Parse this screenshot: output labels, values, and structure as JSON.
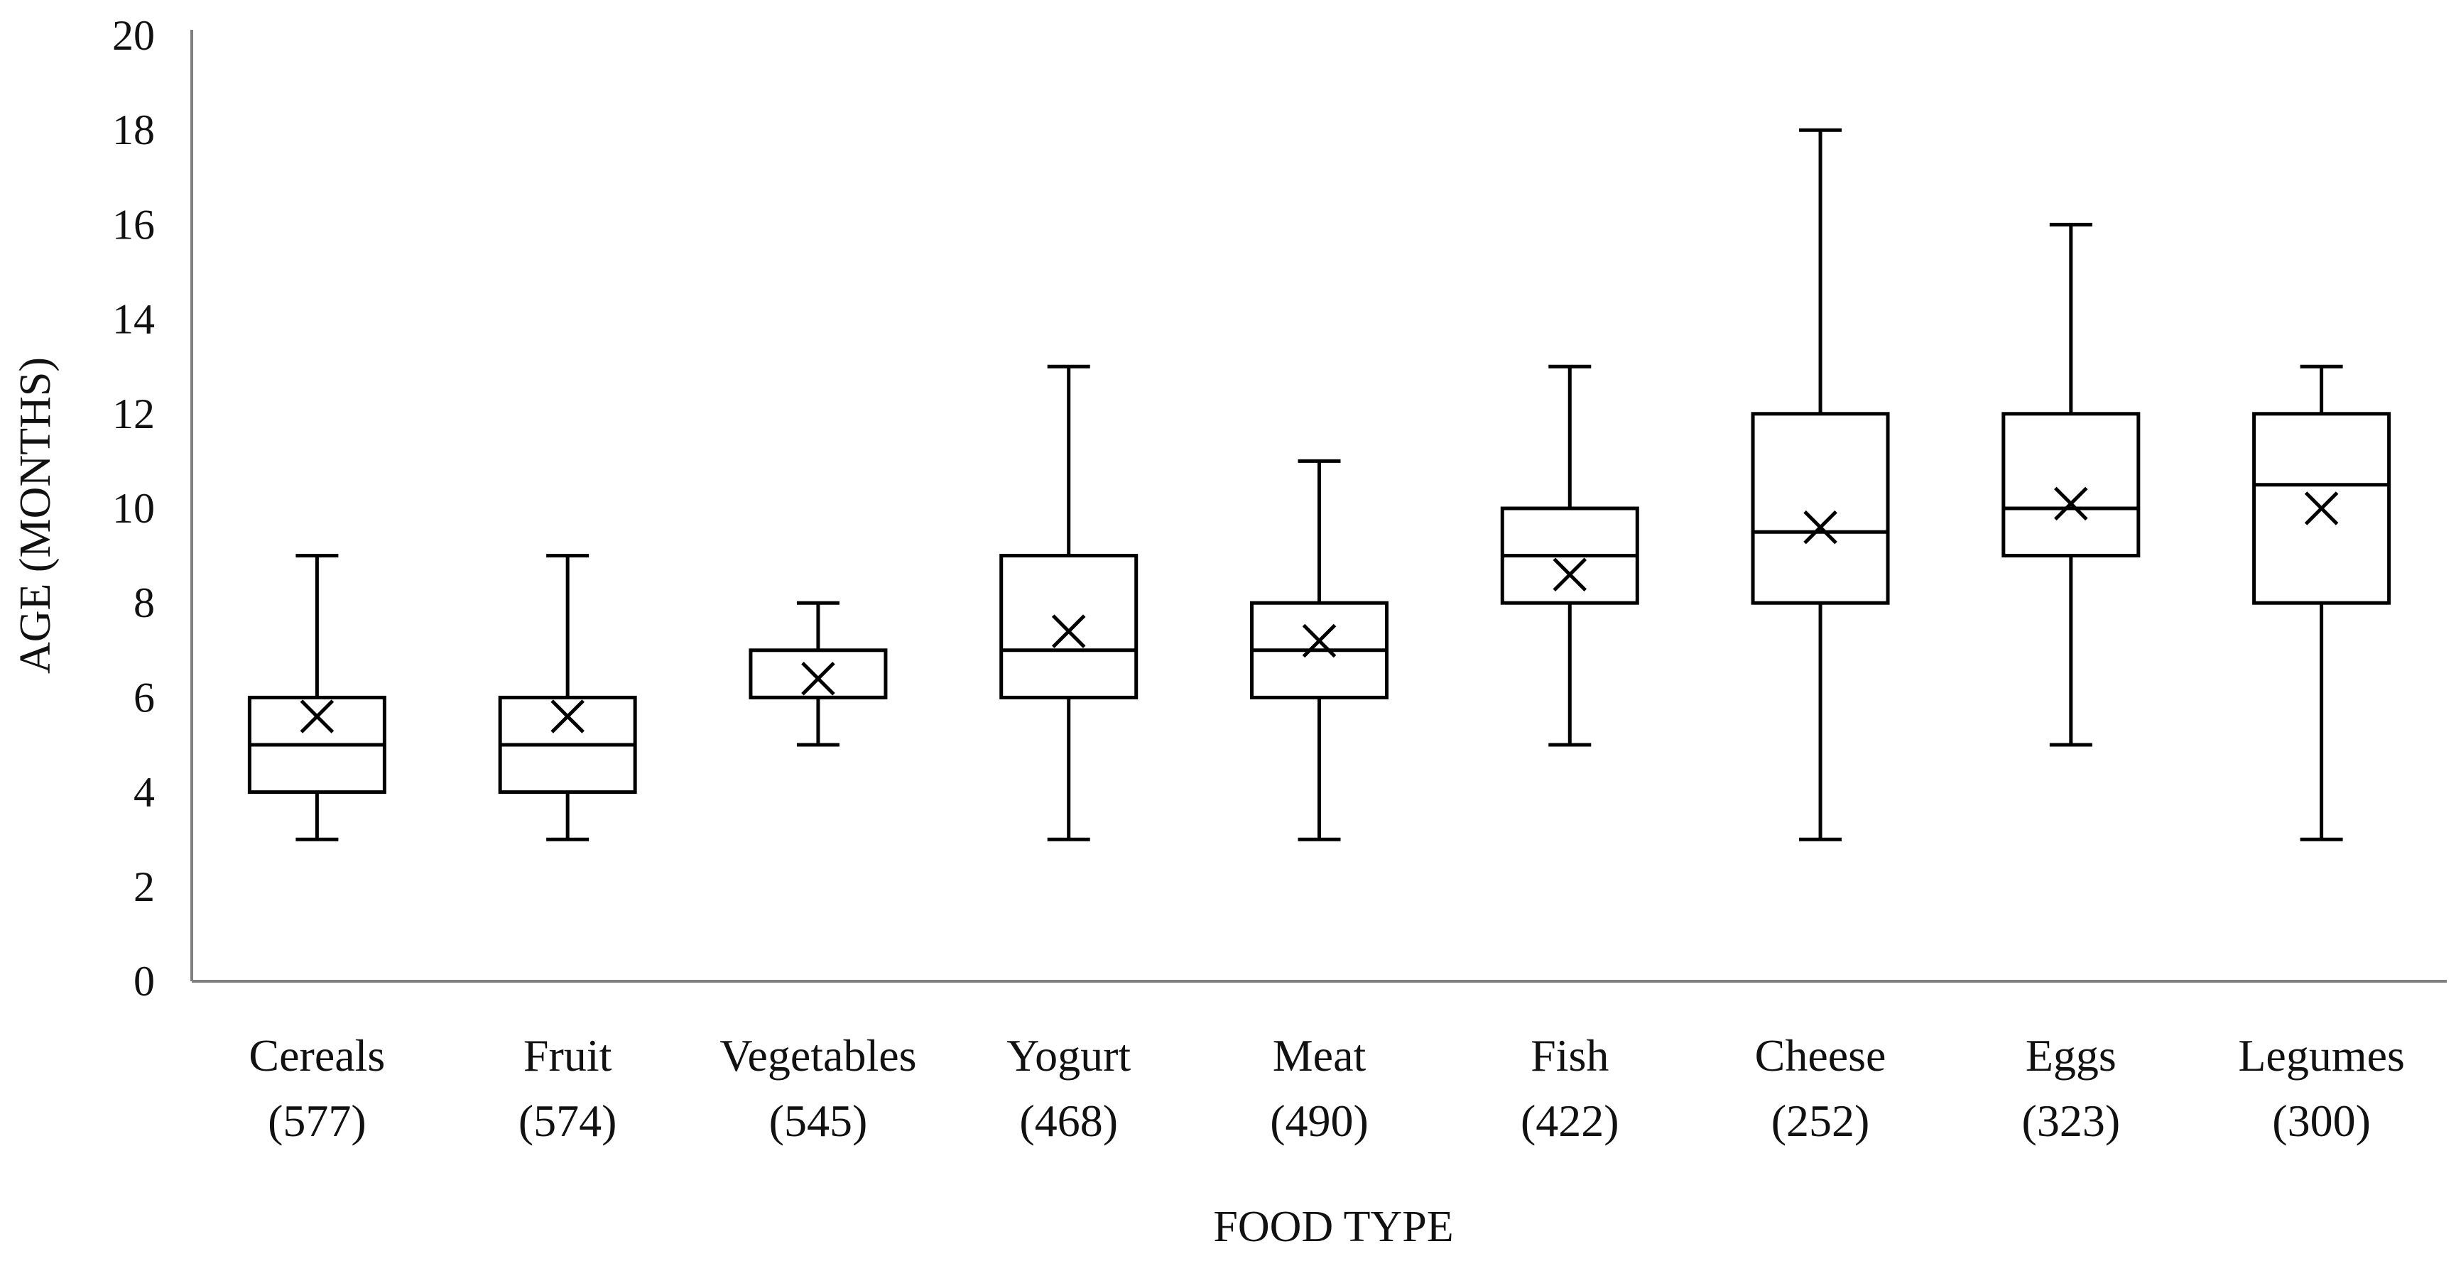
{
  "chart_data": {
    "type": "boxplot",
    "title": "",
    "xlabel": "FOOD TYPE",
    "ylabel": "AGE (MONTHS)",
    "ylim": [
      0,
      20
    ],
    "yticks": [
      "0",
      "2",
      "4",
      "6",
      "8",
      "10",
      "12",
      "14",
      "16",
      "18",
      "20"
    ],
    "grid": false,
    "legend": "none",
    "categories": [
      {
        "name": "Cereals",
        "n": "(577)",
        "min": 3,
        "q1": 4,
        "median": 5,
        "q3": 6,
        "max": 9,
        "mean": 5.6
      },
      {
        "name": "Fruit",
        "n": "(574)",
        "min": 3,
        "q1": 4,
        "median": 5,
        "q3": 6,
        "max": 9,
        "mean": 5.6
      },
      {
        "name": "Vegetables",
        "n": "(545)",
        "min": 5,
        "q1": 6,
        "median": 6,
        "q3": 7,
        "max": 8,
        "mean": 6.4
      },
      {
        "name": "Yogurt",
        "n": "(468)",
        "min": 3,
        "q1": 6,
        "median": 7,
        "q3": 9,
        "max": 13,
        "mean": 7.4
      },
      {
        "name": "Meat",
        "n": "(490)",
        "min": 3,
        "q1": 6,
        "median": 7,
        "q3": 8,
        "max": 11,
        "mean": 7.2
      },
      {
        "name": "Fish",
        "n": "(422)",
        "min": 5,
        "q1": 8,
        "median": 9,
        "q3": 10,
        "max": 13,
        "mean": 8.6
      },
      {
        "name": "Cheese",
        "n": "(252)",
        "min": 3,
        "q1": 8,
        "median": 9.5,
        "q3": 12,
        "max": 18,
        "mean": 9.6
      },
      {
        "name": "Eggs",
        "n": "(323)",
        "min": 5,
        "q1": 9,
        "median": 10,
        "q3": 12,
        "max": 16,
        "mean": 10.1
      },
      {
        "name": "Legumes",
        "n": "(300)",
        "min": 3,
        "q1": 8,
        "median": 10.5,
        "q3": 12,
        "max": 13,
        "mean": 10.0
      }
    ]
  }
}
